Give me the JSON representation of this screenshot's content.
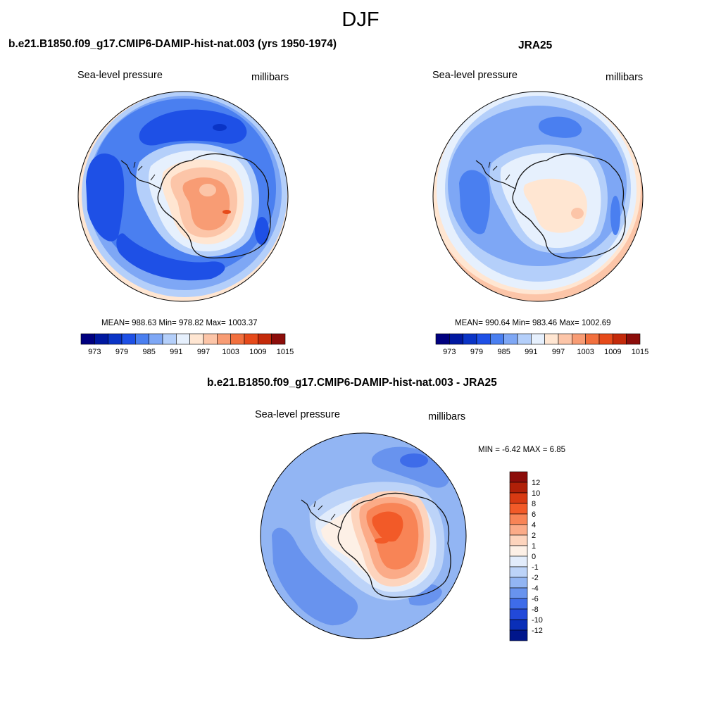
{
  "season": "DJF",
  "panels": [
    {
      "title": "b.e21.B1850.f09_g17.CMIP6-DAMIP-hist-nat.003 (yrs 1950-1974)",
      "left_label": "Sea-level pressure",
      "right_label": "millibars",
      "stats": "MEAN= 988.63  Min= 978.82  Max= 1003.37"
    },
    {
      "title": "JRA25",
      "left_label": "Sea-level pressure",
      "right_label": "millibars",
      "stats": "MEAN= 990.64  Min= 983.46  Max= 1002.69"
    },
    {
      "title": "b.e21.B1850.f09_g17.CMIP6-DAMIP-hist-nat.003 - JRA25",
      "left_label": "Sea-level pressure",
      "right_label": "millibars",
      "stats": "MIN =  -6.42 MAX =   6.85"
    }
  ],
  "colorbar_abs": {
    "tick_labels": [
      "973",
      "979",
      "985",
      "991",
      "997",
      "1003",
      "1009",
      "1015"
    ],
    "colors": [
      "#00007f",
      "#0018a0",
      "#0a34c6",
      "#1e50e6",
      "#4a7ff0",
      "#7ea7f5",
      "#b4cffa",
      "#e6f0fd",
      "#ffe6d2",
      "#fcc5a8",
      "#f89c74",
      "#f2703e",
      "#e64a1a",
      "#c42a0a",
      "#8c0d0a"
    ]
  },
  "colorbar_diff": {
    "tick_labels": [
      "12",
      "10",
      "8",
      "6",
      "4",
      "2",
      "1",
      "0",
      "-1",
      "-2",
      "-4",
      "-6",
      "-8",
      "-10",
      "-12"
    ],
    "colors": [
      "#8c0d0a",
      "#b02008",
      "#d83a12",
      "#f25a28",
      "#f88456",
      "#fbab88",
      "#fdd4bd",
      "#fdf0e6",
      "#e2ecfb",
      "#bcd3f8",
      "#92b5f3",
      "#6893ee",
      "#3e6ce9",
      "#2249d9",
      "#0a2fb8",
      "#00168c"
    ]
  },
  "map_colors": {
    "coastline": "#111111",
    "abs_levels": {
      "deep_low": "#1e50e6",
      "low": "#4a7ff0",
      "mid_low": "#7ea7f5",
      "near_low": "#b4cffa",
      "neutral": "#e6f0fd",
      "near_high": "#ffe6d2",
      "high": "#fcc5a8",
      "higher": "#f89c74",
      "highest": "#f2703e"
    },
    "diff_levels": {
      "minus4": "#6893ee",
      "minus2": "#92b5f3",
      "minus1": "#bcd3f8",
      "zero": "#e2ecfb",
      "plus1": "#fdf0e6",
      "plus2": "#fdd4bd",
      "plus4": "#fbab88",
      "plus6": "#f88456",
      "plus8": "#f25a28"
    }
  }
}
